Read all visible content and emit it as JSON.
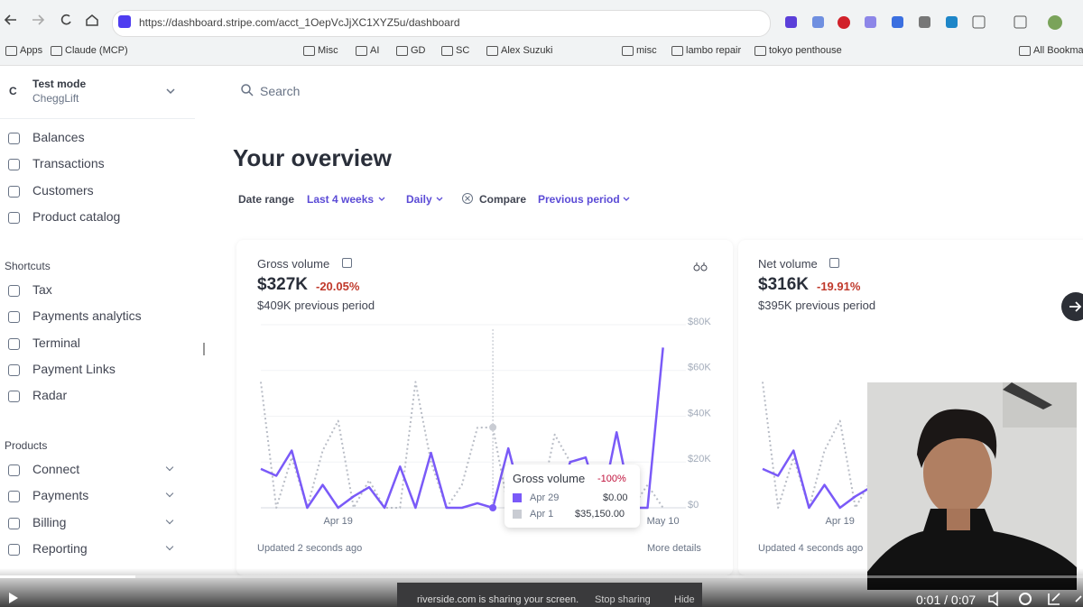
{
  "browser": {
    "url": "https://dashboard.stripe.com/acct_1OepVcJjXC1XYZ5u/dashboard",
    "bookmarks": [
      "Apps",
      "Claude (MCP)",
      "Misc",
      "AI",
      "GD",
      "SC",
      "Alex Suzuki",
      "misc",
      "lambo repair",
      "tokyo penthouse",
      "All Bookmarks"
    ]
  },
  "account": {
    "initial": "C",
    "mode": "Test mode",
    "name": "CheggLift"
  },
  "nav": {
    "main": [
      "Balances",
      "Transactions",
      "Customers",
      "Product catalog"
    ],
    "shortcuts": {
      "heading": "Shortcuts",
      "items": [
        "Tax",
        "Payments analytics",
        "Terminal",
        "Payment Links",
        "Radar"
      ]
    },
    "products": {
      "heading": "Products",
      "items": [
        "Connect",
        "Payments",
        "Billing",
        "Reporting"
      ]
    }
  },
  "search": "Search",
  "overview": {
    "title": "Your overview",
    "filters": {
      "date_range_label": "Date range",
      "date_range": "Last 4 weeks",
      "interval": "Daily",
      "compare_label": "Compare",
      "compare": "Previous period"
    }
  },
  "cards": [
    {
      "title": "Gross volume",
      "value": "$327K",
      "change": "-20.05%",
      "previous": "$409K previous period",
      "chart": {
        "type": "line",
        "categories": [
          null,
          null,
          null,
          null,
          null,
          "Apr 19",
          null,
          null,
          null,
          null,
          null,
          null,
          null,
          null,
          null,
          null,
          null,
          null,
          null,
          null,
          null,
          null,
          null,
          null,
          null,
          null,
          "May 10"
        ],
        "series": [
          {
            "color": "#7a5af8",
            "values": [
              17000,
              14000,
              25000,
              0,
              10000,
              0,
              5000,
              9000,
              0,
              18000,
              0,
              24000,
              0,
              0,
              2000,
              0,
              26000,
              0,
              5000,
              0,
              20000,
              22000,
              0,
              33000,
              0,
              0,
              70000
            ]
          },
          {
            "color": "#b9bdc6",
            "values": [
              55000,
              0,
              22000,
              0,
              25000,
              38000,
              0,
              12000,
              0,
              0,
              55000,
              20000,
              0,
              10000,
              35000,
              35150,
              0,
              0,
              0,
              32000,
              20000,
              0,
              0,
              0,
              0,
              10000,
              0
            ]
          }
        ],
        "ylim": [
          0,
          80000
        ],
        "yticks": [
          {
            "value": 0,
            "label": "$0"
          },
          {
            "value": 20000,
            "label": "$20K"
          },
          {
            "value": 40000,
            "label": "$40K"
          },
          {
            "value": 60000,
            "label": "$60K"
          },
          {
            "value": 80000,
            "label": "$80K"
          }
        ]
      },
      "tooltip": {
        "title": "Gross volume",
        "change": "-100%",
        "rows": [
          [
            "Apr 29",
            "$0.00"
          ],
          [
            "Apr 1",
            "$35,150.00"
          ]
        ]
      },
      "updated": "Updated 2 seconds ago",
      "more": "More details"
    },
    {
      "title": "Net volume",
      "value": "$316K",
      "change": "-19.91%",
      "previous": "$395K previous period",
      "chart": {
        "type": "line",
        "categories": [
          null,
          null,
          null,
          null,
          null,
          "Apr 19",
          null,
          null
        ],
        "series": [
          {
            "color": "#7a5af8",
            "values": [
              17000,
              14000,
              25000,
              0,
              10000,
              0,
              5000,
              9000
            ]
          },
          {
            "color": "#b9bdc6",
            "values": [
              55000,
              0,
              22000,
              0,
              25000,
              38000,
              0,
              12000
            ]
          }
        ],
        "ylim": [
          0,
          80000
        ]
      },
      "updated": "Updated 4 seconds ago"
    }
  ],
  "video": {
    "time": "0:01 / 0:07",
    "share_notice": "riverside.com is sharing your screen.",
    "stop": "Stop sharing",
    "hide": "Hide"
  }
}
